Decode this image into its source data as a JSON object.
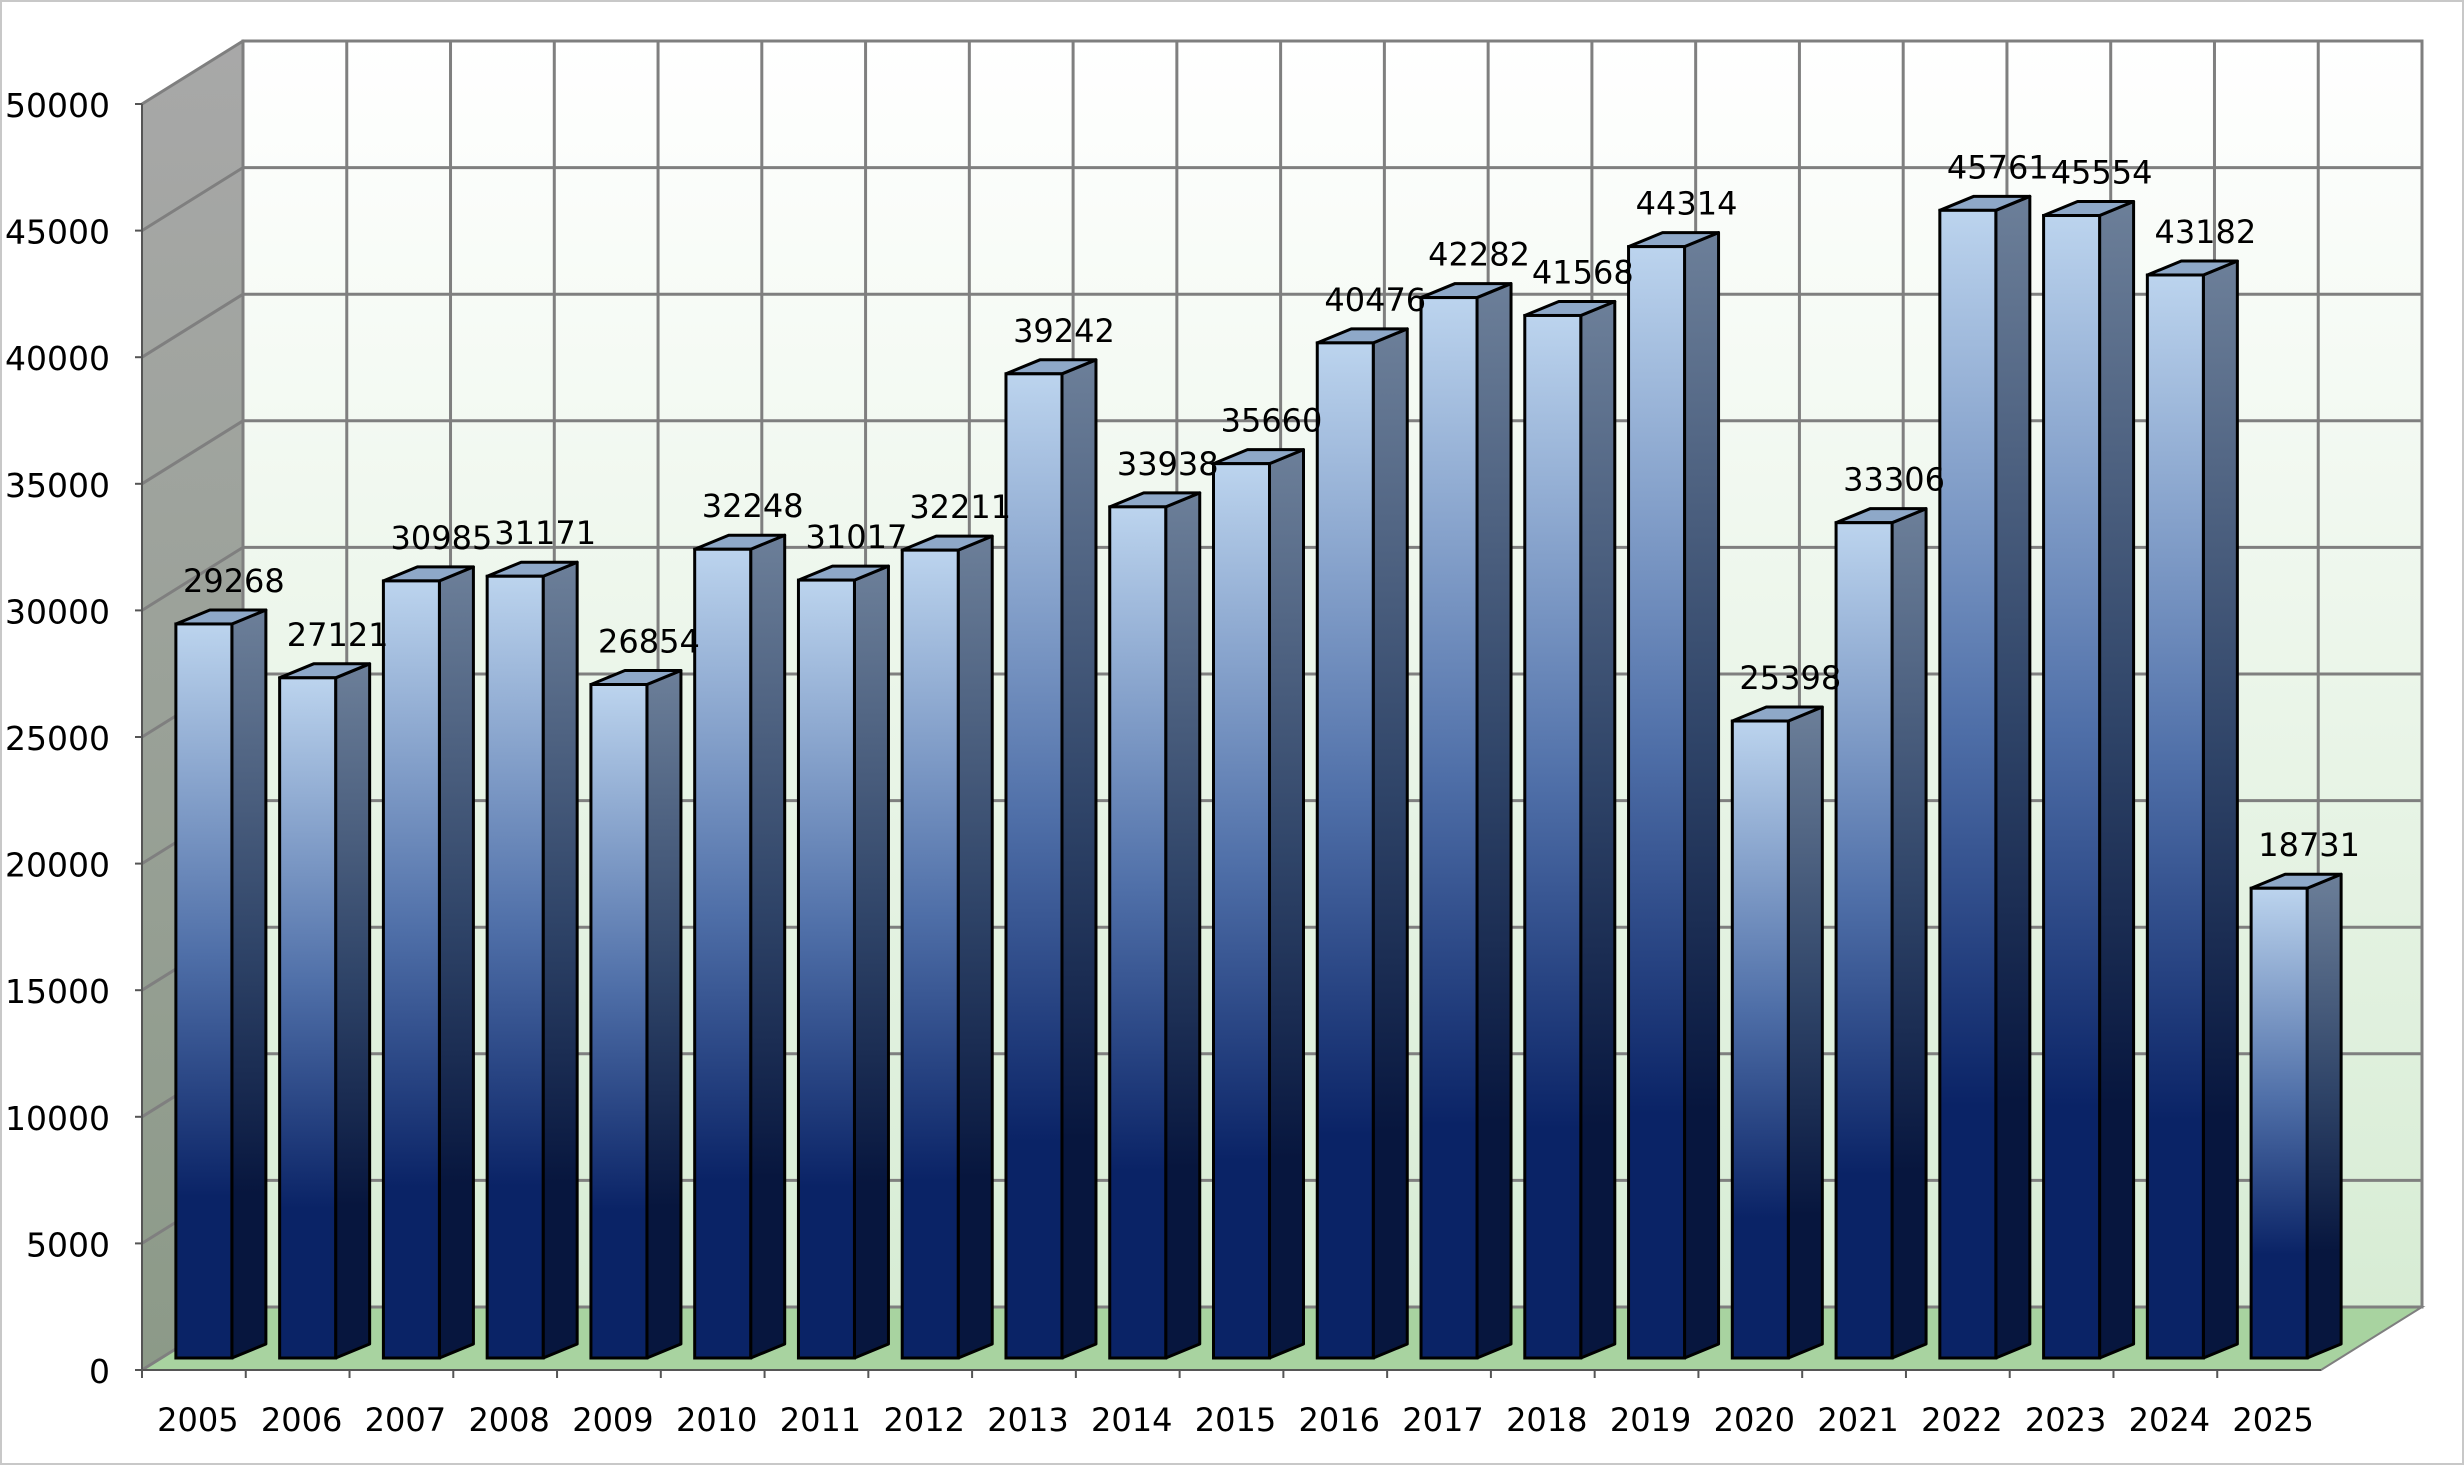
{
  "chart_data": {
    "type": "bar",
    "title": "",
    "xlabel": "",
    "ylabel": "",
    "categories": [
      "2005",
      "2006",
      "2007",
      "2008",
      "2009",
      "2010",
      "2011",
      "2012",
      "2013",
      "2014",
      "2015",
      "2016",
      "2017",
      "2018",
      "2019",
      "2020",
      "2021",
      "2022",
      "2023",
      "2024",
      "2025"
    ],
    "values": [
      29268,
      27121,
      30985,
      31171,
      26854,
      32248,
      31017,
      32211,
      39242,
      33938,
      35660,
      40476,
      42282,
      41568,
      44314,
      25398,
      33306,
      45761,
      45554,
      43182,
      18731
    ],
    "data_labels": [
      "29268",
      "27121",
      "30985",
      "31171",
      "26854",
      "32248",
      "31017",
      "32211",
      "39242",
      "33938",
      "35660",
      "40476",
      "42282",
      "41568",
      "44314",
      "25398",
      "33306",
      "45761",
      "45554",
      "43182",
      "18731"
    ],
    "y_ticks": [
      "0",
      "5000",
      "10000",
      "15000",
      "20000",
      "25000",
      "30000",
      "35000",
      "40000",
      "45000",
      "50000"
    ],
    "ylim": [
      0,
      50000
    ],
    "grid": true,
    "legend": "none",
    "style": "3d-column",
    "colors": {
      "bar_top": "#bcd4ee",
      "bar_mid": "#4f6fa8",
      "bar_bottom": "#0a2366",
      "wall_back_top": "#ffffff",
      "wall_back_bottom": "#d7ecd4",
      "wall_side": "#9a9a9a",
      "floor": "#a8d3a0",
      "grid": "#7f7f7f"
    }
  }
}
